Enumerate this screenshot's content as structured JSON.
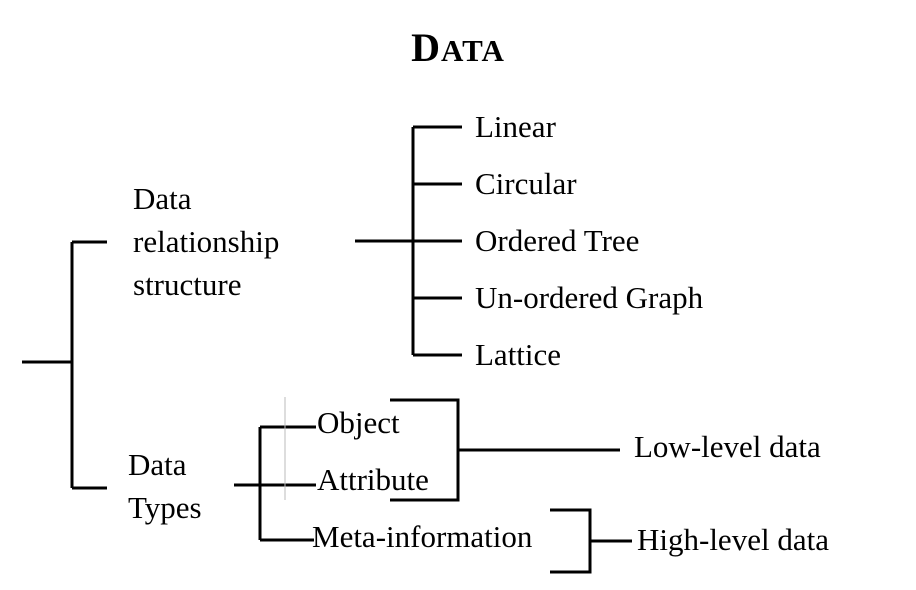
{
  "title": {
    "first": "D",
    "rest": "ATA"
  },
  "branches": {
    "relationship": {
      "label_lines": [
        "Data",
        "relationship",
        "structure"
      ],
      "items": [
        "Linear",
        "Circular",
        "Ordered Tree",
        "Un-ordered Graph",
        "Lattice"
      ]
    },
    "types": {
      "label_lines": [
        "Data",
        "Types"
      ],
      "items": [
        "Object",
        "Attribute",
        "Meta-information"
      ],
      "levels": {
        "low": "Low-level data",
        "high": "High-level data"
      }
    }
  }
}
